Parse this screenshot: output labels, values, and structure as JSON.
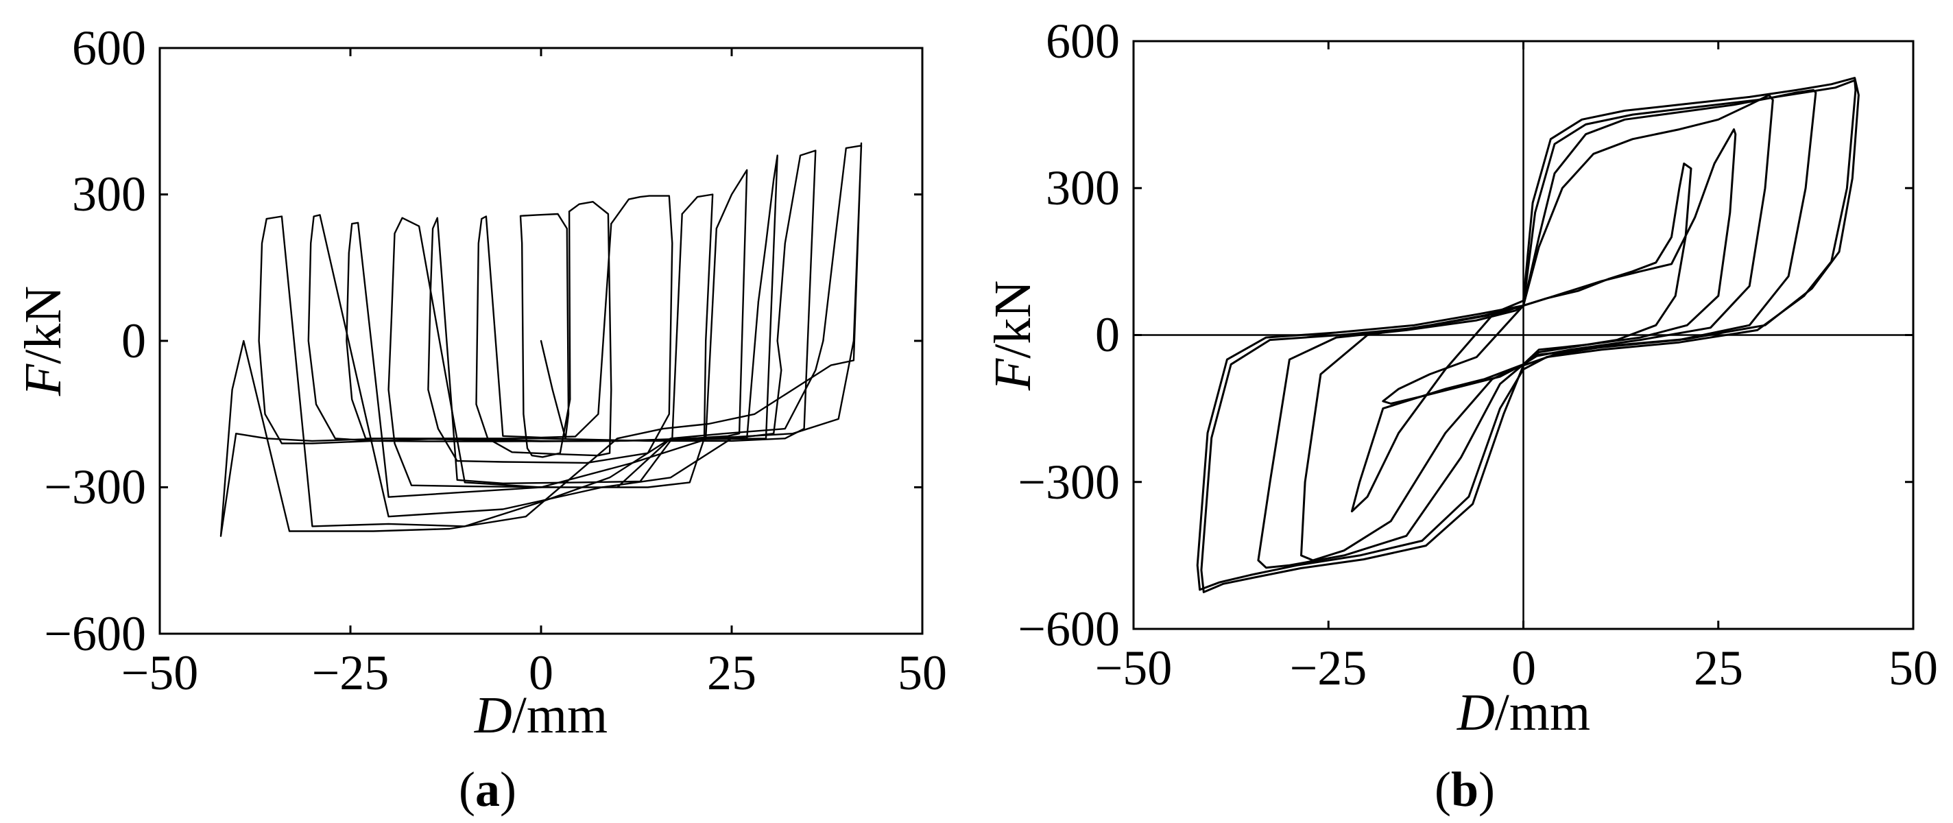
{
  "chart_data": [
    {
      "id": "a",
      "type": "line",
      "panel_label": "a",
      "xlabel_var": "D",
      "xlabel_unit": "/mm",
      "ylabel_var": "F",
      "ylabel_unit": "/kN",
      "xlim": [
        -50,
        50
      ],
      "ylim": [
        -600,
        600
      ],
      "xticks": [
        -50,
        -25,
        0,
        25,
        50
      ],
      "yticks": [
        -600,
        -300,
        0,
        300,
        600
      ],
      "xtick_labels": [
        "−50",
        "−25",
        "0",
        "25",
        "50"
      ],
      "ytick_labels": [
        "−600",
        "−300",
        "0",
        "300",
        "600"
      ],
      "zero_lines": false,
      "grid": false,
      "series": [
        {
          "x": [
            0,
            0.3,
            1.5,
            3.2,
            3.6,
            3.4,
            2.2,
            -0.5,
            -2.7,
            -2.5,
            -2.3,
            -1.8,
            -1.2,
            0.2,
            2.5,
            3.8,
            3.7
          ],
          "y": [
            0,
            -20,
            -100,
            -200,
            -150,
            230,
            260,
            258,
            256,
            200,
            -150,
            -220,
            -235,
            -238,
            -230,
            -120,
            265
          ]
        },
        {
          "x": [
            3.7,
            5,
            6.8,
            8.8,
            9.2,
            9,
            7.5,
            2,
            -3.8,
            -7,
            -8.5,
            -8.2,
            -7.8,
            -7.2,
            -5,
            0,
            4.5,
            7.5,
            9.2
          ],
          "y": [
            265,
            280,
            285,
            260,
            -100,
            -230,
            -235,
            -232,
            -228,
            -200,
            -130,
            200,
            250,
            255,
            -195,
            -198,
            -196,
            -150,
            240
          ]
        },
        {
          "x": [
            9.2,
            11.5,
            13,
            14.2,
            16.8,
            17.2,
            16.8,
            14,
            6,
            -5,
            -11,
            -13.5,
            -14.8,
            -14.5,
            -14.2,
            -13.6,
            -11,
            -5,
            5,
            13,
            17.2,
            18.5
          ],
          "y": [
            240,
            290,
            295,
            297,
            297,
            200,
            -150,
            -230,
            -250,
            -248,
            -246,
            -180,
            -100,
            100,
            230,
            252,
            -285,
            -292,
            -290,
            -288,
            -200,
            260
          ]
        },
        {
          "x": [
            18.5,
            20.5,
            22.5,
            21.6,
            21.4,
            19.5,
            14,
            3,
            -10,
            -17,
            -19.2,
            -20,
            -19.6,
            -19.2,
            -18.2,
            -16,
            -10,
            0,
            10,
            17,
            21.6,
            23
          ],
          "y": [
            260,
            295,
            300,
            0,
            -200,
            -290,
            -300,
            -300,
            -298,
            -296,
            -210,
            -100,
            50,
            220,
            252,
            235,
            -290,
            -300,
            -300,
            -200,
            -200,
            230
          ]
        },
        {
          "x": [
            23,
            25,
            27,
            26,
            24.5,
            19.5,
            10,
            0,
            -9,
            -18,
            -23,
            -24.8,
            -25.5,
            -25.2,
            -24.8,
            -24,
            -20,
            -10,
            0,
            12,
            22,
            27,
            28.5
          ],
          "y": [
            230,
            300,
            350,
            -190,
            -195,
            -200,
            -205,
            -206,
            -203,
            -200,
            -200,
            -120,
            0,
            180,
            240,
            242,
            -320,
            -310,
            -300,
            -250,
            -200,
            -200,
            80
          ]
        },
        {
          "x": [
            28.5,
            29.5,
            30.5,
            31,
            29.5,
            20,
            10,
            -5,
            -15,
            -22,
            -27,
            -29.5,
            -30.5,
            -30.2,
            -29.8,
            -29,
            -20,
            -5,
            8,
            17,
            25,
            30.5,
            31.5,
            31
          ],
          "y": [
            80,
            200,
            330,
            380,
            -200,
            -202,
            -205,
            -206,
            -206,
            -205,
            -200,
            -130,
            0,
            200,
            255,
            258,
            -360,
            -345,
            -300,
            -280,
            -200,
            -190,
            -60,
            0
          ]
        },
        {
          "x": [
            31,
            32,
            34,
            36,
            34.5,
            32,
            25,
            14,
            0,
            -12,
            -22,
            -30,
            -34,
            -36.2,
            -37,
            -36.6,
            -36,
            -34,
            -30,
            -20,
            -10,
            0,
            9,
            17,
            24,
            32,
            36,
            37
          ],
          "y": [
            0,
            200,
            380,
            390,
            -180,
            -200,
            -205,
            -205,
            -200,
            -200,
            -205,
            -210,
            -210,
            -150,
            0,
            200,
            250,
            255,
            -380,
            -375,
            -380,
            -330,
            -280,
            -200,
            -190,
            -180,
            -60,
            0
          ]
        },
        {
          "x": [
            37,
            38.5,
            40,
            42,
            41,
            39,
            33,
            22,
            10,
            0,
            -10,
            -20,
            -30,
            -36,
            -40,
            -42,
            -41.5,
            -40.5,
            -39,
            -33,
            -22,
            -12,
            -2,
            4,
            10,
            16,
            22,
            28,
            33,
            38,
            41,
            42
          ],
          "y": [
            0,
            200,
            395,
            400,
            0,
            -160,
            -190,
            -200,
            -205,
            -205,
            -200,
            -200,
            -205,
            -200,
            -190,
            -400,
            -300,
            -100,
            0,
            -390,
            -390,
            -385,
            -360,
            -280,
            -200,
            -180,
            -170,
            -150,
            -100,
            -50,
            -40,
            405
          ]
        }
      ]
    },
    {
      "id": "b",
      "type": "line",
      "panel_label": "b",
      "xlabel_var": "D",
      "xlabel_unit": "/mm",
      "ylabel_var": "F",
      "ylabel_unit": "/kN",
      "xlim": [
        -50,
        50
      ],
      "ylim": [
        -600,
        600
      ],
      "xticks": [
        -50,
        -25,
        0,
        25,
        50
      ],
      "yticks": [
        -600,
        -300,
        0,
        300,
        600
      ],
      "xtick_labels": [
        "−50",
        "−25",
        "0",
        "25",
        "50"
      ],
      "ytick_labels": [
        "−600",
        "−300",
        "0",
        "300",
        "600"
      ],
      "zero_lines": true,
      "grid": false,
      "series": [
        {
          "x": [
            0,
            3,
            7,
            11,
            14,
            17,
            19,
            20,
            20.6,
            21.5,
            20.8,
            19.5,
            17,
            12,
            6,
            2,
            0,
            -3,
            -8,
            -13,
            -17,
            -18,
            -16,
            -12,
            -6,
            0
          ],
          "y": [
            60,
            75,
            90,
            115,
            130,
            148,
            200,
            300,
            350,
            340,
            200,
            80,
            20,
            -10,
            -25,
            -35,
            -60,
            -85,
            -105,
            -125,
            -140,
            -135,
            -110,
            -80,
            -45,
            60
          ]
        },
        {
          "x": [
            0,
            4,
            10,
            15,
            19,
            22,
            24.5,
            27,
            27.2,
            26.5,
            25,
            21,
            15,
            8,
            2,
            0,
            -5,
            -10,
            -14,
            -18,
            -21,
            -22,
            -20,
            -16,
            -10,
            -4,
            0
          ],
          "y": [
            60,
            80,
            110,
            130,
            145,
            240,
            350,
            420,
            410,
            250,
            80,
            20,
            -5,
            -20,
            -30,
            -60,
            -90,
            -110,
            -130,
            -150,
            -300,
            -360,
            -330,
            -200,
            -70,
            40,
            60
          ]
        },
        {
          "x": [
            0,
            2,
            5,
            9,
            14,
            20,
            25,
            29,
            31.5,
            32,
            31,
            29,
            24,
            15,
            6,
            1,
            0,
            -4,
            -10,
            -17,
            -23,
            -27,
            -28.5,
            -28,
            -26,
            -20,
            -12,
            -5,
            0
          ],
          "y": [
            60,
            180,
            300,
            370,
            400,
            420,
            440,
            470,
            490,
            480,
            300,
            100,
            15,
            -10,
            -30,
            -45,
            -60,
            -90,
            -200,
            -380,
            -440,
            -460,
            -450,
            -300,
            -80,
            0,
            20,
            40,
            60
          ]
        },
        {
          "x": [
            0,
            2,
            4,
            8,
            13,
            20,
            27,
            32,
            35,
            37.2,
            37.5,
            36.2,
            34,
            29,
            20,
            10,
            2,
            0,
            -3,
            -8,
            -15,
            -23,
            -30,
            -33,
            -34,
            -32.5,
            -30,
            -24,
            -15,
            -6,
            -1,
            0
          ],
          "y": [
            60,
            200,
            330,
            410,
            440,
            455,
            470,
            485,
            495,
            500,
            495,
            300,
            120,
            20,
            -10,
            -25,
            -40,
            -60,
            -100,
            -250,
            -410,
            -450,
            -470,
            -475,
            -460,
            -300,
            -50,
            -5,
            10,
            30,
            50,
            60
          ]
        },
        {
          "x": [
            0,
            1.5,
            4,
            8,
            14,
            22,
            30,
            36,
            40,
            42.5,
            42.6,
            41.5,
            39.5,
            36,
            30,
            20,
            10,
            3,
            0,
            -3,
            -7,
            -13,
            -21,
            -29,
            -35,
            -39,
            -41.5,
            -41.8,
            -40.5,
            -38,
            -33,
            -24,
            -14,
            -5,
            0
          ],
          "y": [
            60,
            250,
            390,
            430,
            450,
            465,
            480,
            495,
            505,
            520,
            500,
            300,
            150,
            80,
            10,
            -15,
            -30,
            -45,
            -70,
            -150,
            -330,
            -420,
            -450,
            -470,
            -490,
            -505,
            -520,
            -470,
            -200,
            -50,
            -5,
            5,
            20,
            45,
            60
          ]
        },
        {
          "x": [
            0,
            1.2,
            3.5,
            7.5,
            13,
            21,
            29,
            35,
            39.5,
            42.5,
            43,
            42.2,
            40.5,
            37,
            31,
            21,
            11,
            4,
            0,
            -2.5,
            -6.5,
            -12.5,
            -20.5,
            -28.5,
            -34.5,
            -38.5,
            -41,
            -41.3,
            -40,
            -37.5,
            -32.5,
            -23.5,
            -13.5,
            -4.5,
            0
          ],
          "y": [
            70,
            270,
            400,
            440,
            458,
            472,
            486,
            500,
            512,
            525,
            490,
            320,
            170,
            95,
            20,
            -8,
            -22,
            -40,
            -62,
            -160,
            -345,
            -430,
            -458,
            -476,
            -495,
            -508,
            -525,
            -480,
            -210,
            -60,
            -10,
            0,
            15,
            40,
            70
          ]
        }
      ]
    }
  ]
}
